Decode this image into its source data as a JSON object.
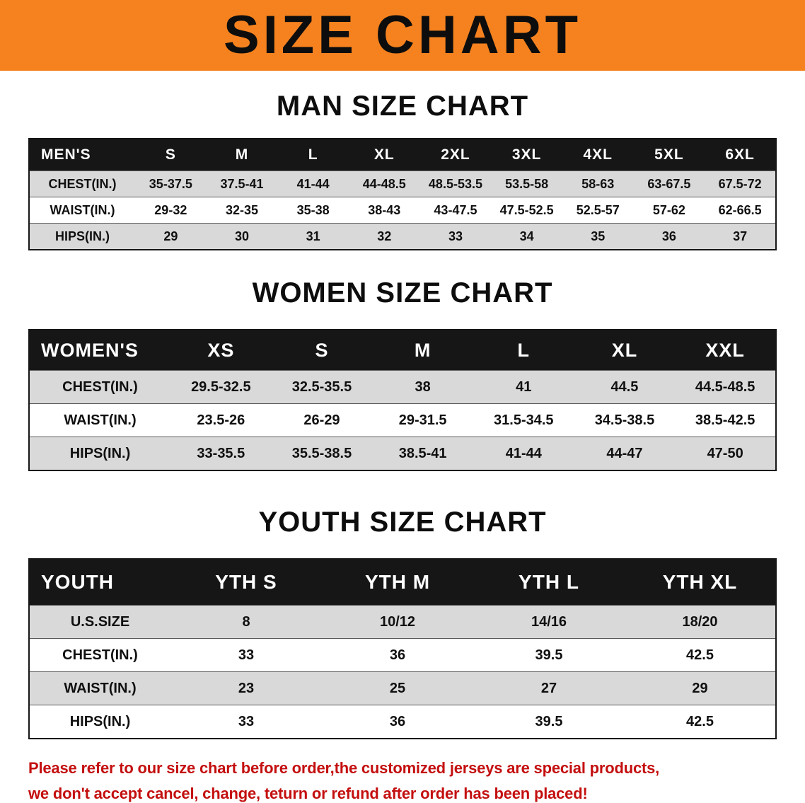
{
  "banner": {
    "title": "SIZE CHART"
  },
  "colors": {
    "banner_bg": "#F5821F",
    "header_bg": "#161616",
    "row_alt_bg": "#D9D9D9",
    "notice_text": "#C40F0F"
  },
  "sections": [
    {
      "heading": "MAN SIZE CHART",
      "style": "men",
      "columns": [
        "MEN'S",
        "S",
        "M",
        "L",
        "XL",
        "2XL",
        "3XL",
        "4XL",
        "5XL",
        "6XL"
      ],
      "rows": [
        [
          "CHEST(IN.)",
          "35-37.5",
          "37.5-41",
          "41-44",
          "44-48.5",
          "48.5-53.5",
          "53.5-58",
          "58-63",
          "63-67.5",
          "67.5-72"
        ],
        [
          "WAIST(IN.)",
          "29-32",
          "32-35",
          "35-38",
          "38-43",
          "43-47.5",
          "47.5-52.5",
          "52.5-57",
          "57-62",
          "62-66.5"
        ],
        [
          "HIPS(IN.)",
          "29",
          "30",
          "31",
          "32",
          "33",
          "34",
          "35",
          "36",
          "37"
        ]
      ]
    },
    {
      "heading": "WOMEN SIZE CHART",
      "style": "women",
      "columns": [
        "WOMEN'S",
        "XS",
        "S",
        "M",
        "L",
        "XL",
        "XXL"
      ],
      "rows": [
        [
          "CHEST(IN.)",
          "29.5-32.5",
          "32.5-35.5",
          "38",
          "41",
          "44.5",
          "44.5-48.5"
        ],
        [
          "WAIST(IN.)",
          "23.5-26",
          "26-29",
          "29-31.5",
          "31.5-34.5",
          "34.5-38.5",
          "38.5-42.5"
        ],
        [
          "HIPS(IN.)",
          "33-35.5",
          "35.5-38.5",
          "38.5-41",
          "41-44",
          "44-47",
          "47-50"
        ]
      ]
    },
    {
      "heading": "YOUTH SIZE CHART",
      "style": "youth",
      "columns": [
        "YOUTH",
        "YTH S",
        "YTH M",
        "YTH L",
        "YTH XL"
      ],
      "rows": [
        [
          "U.S.SIZE",
          "8",
          "10/12",
          "14/16",
          "18/20"
        ],
        [
          "CHEST(IN.)",
          "33",
          "36",
          "39.5",
          "42.5"
        ],
        [
          "WAIST(IN.)",
          "23",
          "25",
          "27",
          "29"
        ],
        [
          "HIPS(IN.)",
          "33",
          "36",
          "39.5",
          "42.5"
        ]
      ]
    }
  ],
  "notice": {
    "lines": [
      "Please refer to our size chart before order,the customized jerseys are special products,",
      "we don't accept cancel, change, teturn or refund after order has been placed!"
    ]
  }
}
